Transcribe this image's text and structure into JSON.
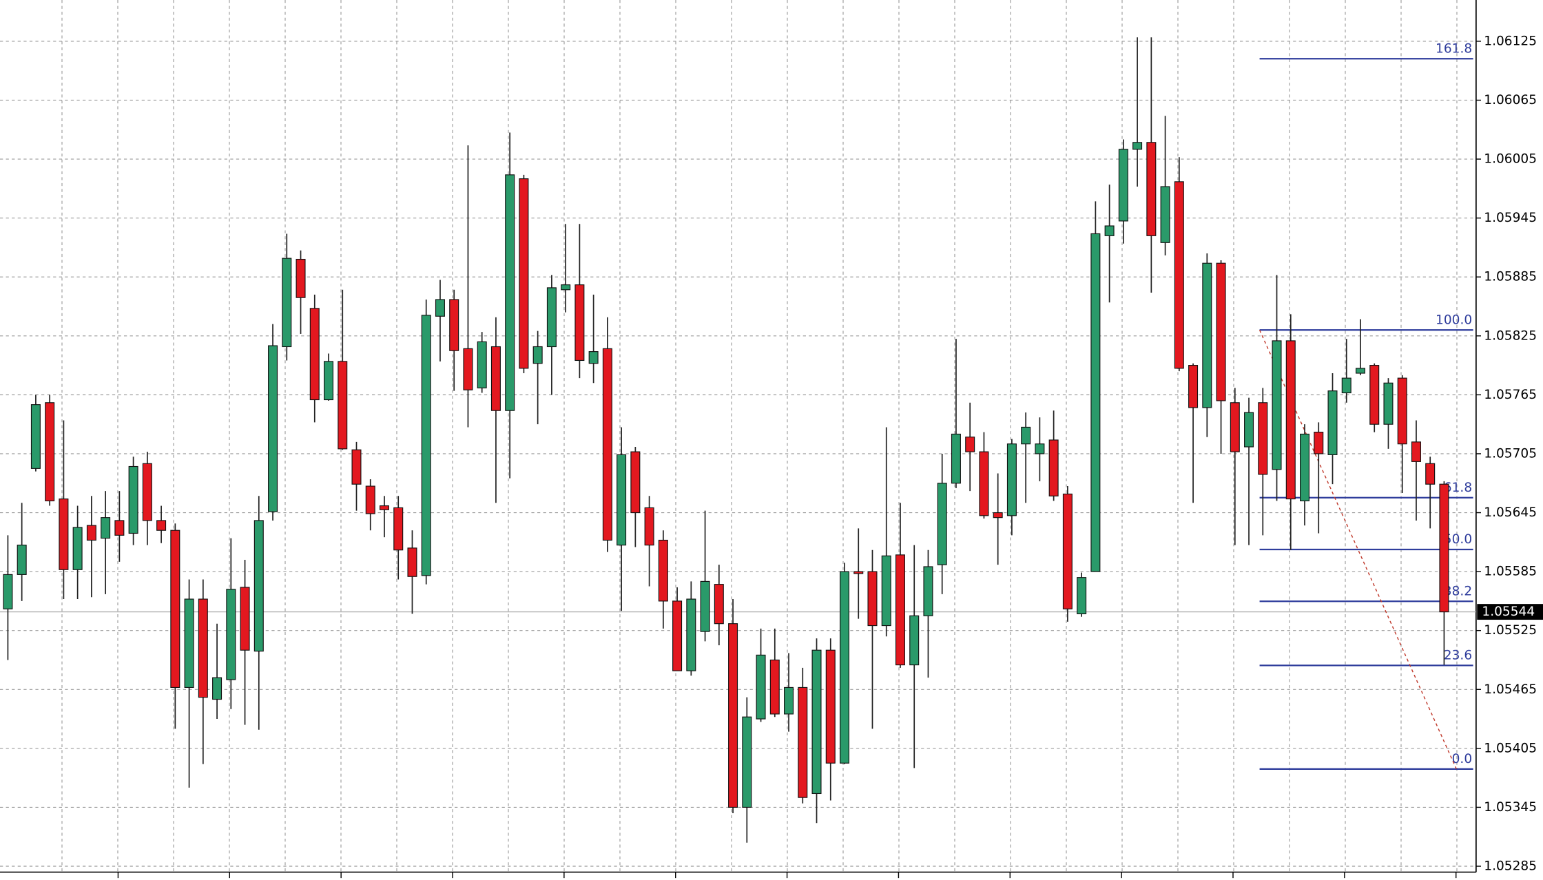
{
  "chart_data": {
    "type": "candlestick",
    "open": [
      1.05547,
      1.05582,
      1.0569,
      1.05757,
      1.05659,
      1.05587,
      1.05632,
      1.05619,
      1.05637,
      1.05624,
      1.05695,
      1.05637,
      1.05627,
      1.05467,
      1.05557,
      1.05455,
      1.05475,
      1.05569,
      1.05504,
      1.05646,
      1.05814,
      1.05903,
      1.05853,
      1.0576,
      1.05799,
      1.05709,
      1.05672,
      1.05652,
      1.0565,
      1.05609,
      1.05581,
      1.05845,
      1.05862,
      1.05812,
      1.05772,
      1.05814,
      1.05749,
      1.05985,
      1.05797,
      1.05814,
      1.05872,
      1.05877,
      1.05797,
      1.05812,
      1.05612,
      1.05707,
      1.0565,
      1.05617,
      1.05555,
      1.05484,
      1.05524,
      1.05572,
      1.05532,
      1.05345,
      1.05435,
      1.05495,
      1.0544,
      1.05467,
      1.05359,
      1.05505,
      1.0539,
      1.05585,
      1.05585,
      1.0553,
      1.05602,
      1.0549,
      1.0554,
      1.05592,
      1.05675,
      1.05722,
      1.05707,
      1.05645,
      1.05642,
      1.05715,
      1.05705,
      1.05719,
      1.05664,
      1.05542,
      1.05585,
      1.05927,
      1.05942,
      1.06015,
      1.06022,
      1.0592,
      1.05982,
      1.05795,
      1.05752,
      1.05899,
      1.05757,
      1.05712,
      1.05757,
      1.05689,
      1.0582,
      1.05657,
      1.05727,
      1.05704,
      1.05767,
      1.05787,
      1.05795,
      1.05735,
      1.05782,
      1.05717,
      1.05695,
      1.05674
    ],
    "high": [
      1.05622,
      1.05655,
      1.05765,
      1.05765,
      1.05739,
      1.05652,
      1.05662,
      1.05667,
      1.05667,
      1.05702,
      1.05707,
      1.05652,
      1.05634,
      1.05577,
      1.05577,
      1.05532,
      1.05619,
      1.05597,
      1.05662,
      1.05837,
      1.05929,
      1.05912,
      1.05867,
      1.05807,
      1.05872,
      1.05717,
      1.05679,
      1.05662,
      1.05662,
      1.05627,
      1.05862,
      1.05882,
      1.05872,
      1.06019,
      1.05829,
      1.05844,
      1.06032,
      1.05989,
      1.0583,
      1.05887,
      1.05939,
      1.05939,
      1.05867,
      1.05844,
      1.05732,
      1.05712,
      1.05662,
      1.05627,
      1.05569,
      1.05575,
      1.05647,
      1.05592,
      1.05557,
      1.05457,
      1.05527,
      1.05527,
      1.05502,
      1.05487,
      1.05517,
      1.05517,
      1.05594,
      1.05629,
      1.05607,
      1.05732,
      1.05655,
      1.05612,
      1.05607,
      1.05705,
      1.05822,
      1.05757,
      1.05727,
      1.05685,
      1.0572,
      1.05747,
      1.05742,
      1.05749,
      1.05672,
      1.05584,
      1.05962,
      1.05979,
      1.06025,
      1.06129,
      1.06129,
      1.06049,
      1.06007,
      1.05797,
      1.05909,
      1.05902,
      1.05772,
      1.05762,
      1.05772,
      1.05887,
      1.05847,
      1.05735,
      1.05737,
      1.05787,
      1.05822,
      1.05842,
      1.05797,
      1.05782,
      1.05785,
      1.05739,
      1.05702,
      1.05677
    ],
    "low": [
      1.05495,
      1.05555,
      1.05687,
      1.05652,
      1.05557,
      1.05557,
      1.05559,
      1.05562,
      1.05595,
      1.05612,
      1.05612,
      1.05614,
      1.05425,
      1.05365,
      1.05389,
      1.05435,
      1.05445,
      1.05429,
      1.05424,
      1.05637,
      1.058,
      1.05827,
      1.05737,
      1.05759,
      1.05709,
      1.05647,
      1.05627,
      1.0562,
      1.05577,
      1.05542,
      1.05572,
      1.05799,
      1.05769,
      1.05732,
      1.05767,
      1.05655,
      1.0568,
      1.05787,
      1.05735,
      1.05765,
      1.05849,
      1.05782,
      1.05777,
      1.05605,
      1.05545,
      1.0561,
      1.0557,
      1.05527,
      1.05484,
      1.05479,
      1.05514,
      1.0551,
      1.05339,
      1.05309,
      1.05432,
      1.05437,
      1.05422,
      1.05349,
      1.05329,
      1.05352,
      1.05389,
      1.05537,
      1.05425,
      1.05519,
      1.05487,
      1.05385,
      1.05477,
      1.05562,
      1.0567,
      1.05667,
      1.05639,
      1.05592,
      1.05622,
      1.05655,
      1.05677,
      1.05657,
      1.05534,
      1.05539,
      1.05585,
      1.05859,
      1.05919,
      1.05977,
      1.05869,
      1.05907,
      1.05789,
      1.05655,
      1.05722,
      1.05705,
      1.05612,
      1.05612,
      1.05622,
      1.05657,
      1.05607,
      1.05632,
      1.05624,
      1.05674,
      1.05757,
      1.05785,
      1.05727,
      1.0571,
      1.05665,
      1.05637,
      1.05629,
      1.0549
    ],
    "close": [
      1.05582,
      1.05612,
      1.05755,
      1.05657,
      1.05587,
      1.0563,
      1.05617,
      1.0564,
      1.05622,
      1.05692,
      1.05637,
      1.05627,
      1.05467,
      1.05557,
      1.05457,
      1.05477,
      1.05567,
      1.05505,
      1.05637,
      1.05815,
      1.05904,
      1.05864,
      1.0576,
      1.05799,
      1.0571,
      1.05674,
      1.05644,
      1.05648,
      1.05607,
      1.0558,
      1.05846,
      1.05862,
      1.0581,
      1.0577,
      1.05819,
      1.05749,
      1.05989,
      1.05792,
      1.05814,
      1.05874,
      1.05877,
      1.058,
      1.05809,
      1.05617,
      1.05704,
      1.05645,
      1.05612,
      1.05555,
      1.05484,
      1.05557,
      1.05575,
      1.05532,
      1.05345,
      1.05437,
      1.055,
      1.0544,
      1.05467,
      1.05355,
      1.05505,
      1.0539,
      1.05585,
      1.05583,
      1.0553,
      1.05601,
      1.0549,
      1.0554,
      1.0559,
      1.05675,
      1.05725,
      1.05707,
      1.05642,
      1.0564,
      1.05715,
      1.05732,
      1.05715,
      1.05662,
      1.05547,
      1.05579,
      1.05929,
      1.05937,
      1.06015,
      1.06022,
      1.05927,
      1.05977,
      1.05792,
      1.05752,
      1.05899,
      1.05759,
      1.05707,
      1.05747,
      1.05684,
      1.0582,
      1.05659,
      1.05725,
      1.05705,
      1.05769,
      1.05782,
      1.05792,
      1.05735,
      1.05777,
      1.05715,
      1.05697,
      1.05674,
      1.05544
    ],
    "ylim": [
      1.05279,
      1.06167
    ],
    "yticks": [
      1.06125,
      1.06065,
      1.06005,
      1.05945,
      1.05885,
      1.05825,
      1.05765,
      1.05705,
      1.05645,
      1.05585,
      1.05525,
      1.05465,
      1.05405,
      1.05345,
      1.05285
    ],
    "grid": true,
    "current_price": 1.05544,
    "colors": {
      "up": "#2a9a6a",
      "down": "#e3181f",
      "fibonacci": "#2f3d9c",
      "trend": "#c0392b"
    },
    "fibonacci": {
      "price_0": 1.05384,
      "price_100": 1.05831,
      "levels": [
        {
          "value": 161.8,
          "label": "161.8"
        },
        {
          "value": 100,
          "label": "100.0"
        },
        {
          "value": 61.8,
          "label": "61.8"
        },
        {
          "value": 50,
          "label": "50.0"
        },
        {
          "value": 38.2,
          "label": "38.2"
        },
        {
          "value": 23.6,
          "label": "23.6"
        },
        {
          "value": 0,
          "label": "0.0"
        }
      ]
    }
  }
}
